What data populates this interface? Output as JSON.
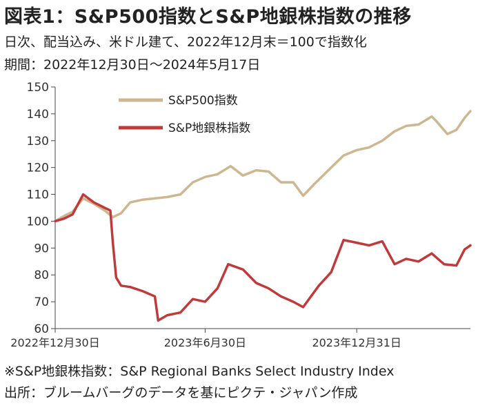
{
  "header": {
    "title": "図表1：S&P500指数とS&P地銀株指数の推移",
    "subtitle": "日次、配当込み、米ドル建て、2022年12月末＝100で指数化",
    "period": "期間：2022年12月30日～2024年5月17日"
  },
  "footer": {
    "note": "※S&P地銀株指数：S&P Regional Banks Select Industry Index",
    "source": "出所：ブルームバーグのデータを基にピクテ・ジャパン作成"
  },
  "chart_data": {
    "type": "line",
    "ylim": [
      60,
      150
    ],
    "yticks": [
      60,
      70,
      80,
      90,
      100,
      110,
      120,
      130,
      140,
      150
    ],
    "xlim": [
      "2022-12-30",
      "2024-05-17"
    ],
    "xtick_labels": [
      {
        "date": "2022-12-30",
        "label": "2022年12月30日"
      },
      {
        "date": "2023-06-30",
        "label": "2023年6月30日"
      },
      {
        "date": "2023-12-31",
        "label": "2023年12月31日"
      }
    ],
    "legend_position": "top-left",
    "series": [
      {
        "name": "S&P500指数",
        "color": "#cdb791",
        "points": [
          [
            "2022-12-30",
            100
          ],
          [
            "2023-01-10",
            102
          ],
          [
            "2023-01-20",
            103.5
          ],
          [
            "2023-02-02",
            108.5
          ],
          [
            "2023-02-15",
            106.5
          ],
          [
            "2023-02-28",
            104
          ],
          [
            "2023-03-10",
            101.5
          ],
          [
            "2023-03-20",
            103
          ],
          [
            "2023-03-31",
            107
          ],
          [
            "2023-04-15",
            108
          ],
          [
            "2023-04-30",
            108.5
          ],
          [
            "2023-05-15",
            109
          ],
          [
            "2023-05-31",
            110
          ],
          [
            "2023-06-15",
            114.5
          ],
          [
            "2023-06-30",
            116.5
          ],
          [
            "2023-07-15",
            117.5
          ],
          [
            "2023-07-31",
            120.5
          ],
          [
            "2023-08-15",
            117
          ],
          [
            "2023-08-31",
            119
          ],
          [
            "2023-09-15",
            118.5
          ],
          [
            "2023-09-30",
            114.5
          ],
          [
            "2023-10-15",
            114.5
          ],
          [
            "2023-10-27",
            109.5
          ],
          [
            "2023-11-10",
            114
          ],
          [
            "2023-11-30",
            120
          ],
          [
            "2023-12-15",
            124.5
          ],
          [
            "2023-12-31",
            126.5
          ],
          [
            "2024-01-15",
            127.5
          ],
          [
            "2024-01-31",
            130
          ],
          [
            "2024-02-15",
            133.5
          ],
          [
            "2024-02-29",
            135.5
          ],
          [
            "2024-03-15",
            136
          ],
          [
            "2024-03-31",
            139
          ],
          [
            "2024-04-05",
            137.5
          ],
          [
            "2024-04-19",
            132.5
          ],
          [
            "2024-04-30",
            134
          ],
          [
            "2024-05-10",
            138.5
          ],
          [
            "2024-05-17",
            141
          ]
        ]
      },
      {
        "name": "S&P地銀株指数",
        "color": "#c0393b",
        "points": [
          [
            "2022-12-30",
            100
          ],
          [
            "2023-01-10",
            101
          ],
          [
            "2023-01-20",
            102.5
          ],
          [
            "2023-02-02",
            110
          ],
          [
            "2023-02-15",
            107
          ],
          [
            "2023-02-28",
            105
          ],
          [
            "2023-03-07",
            104
          ],
          [
            "2023-03-10",
            92
          ],
          [
            "2023-03-14",
            79
          ],
          [
            "2023-03-20",
            76
          ],
          [
            "2023-03-31",
            75.5
          ],
          [
            "2023-04-15",
            74
          ],
          [
            "2023-04-30",
            72
          ],
          [
            "2023-05-04",
            63
          ],
          [
            "2023-05-15",
            65
          ],
          [
            "2023-05-31",
            66
          ],
          [
            "2023-06-15",
            71
          ],
          [
            "2023-06-30",
            70
          ],
          [
            "2023-07-15",
            75
          ],
          [
            "2023-07-28",
            84
          ],
          [
            "2023-08-15",
            82
          ],
          [
            "2023-08-31",
            77
          ],
          [
            "2023-09-15",
            75
          ],
          [
            "2023-09-30",
            72
          ],
          [
            "2023-10-15",
            70
          ],
          [
            "2023-10-27",
            68
          ],
          [
            "2023-11-15",
            76
          ],
          [
            "2023-11-30",
            81
          ],
          [
            "2023-12-15",
            93
          ],
          [
            "2023-12-31",
            92
          ],
          [
            "2024-01-15",
            91
          ],
          [
            "2024-01-31",
            92.5
          ],
          [
            "2024-02-15",
            84
          ],
          [
            "2024-02-29",
            86
          ],
          [
            "2024-03-15",
            85
          ],
          [
            "2024-03-31",
            88
          ],
          [
            "2024-04-15",
            84
          ],
          [
            "2024-04-30",
            83.5
          ],
          [
            "2024-05-10",
            89.5
          ],
          [
            "2024-05-17",
            91
          ]
        ]
      }
    ]
  }
}
